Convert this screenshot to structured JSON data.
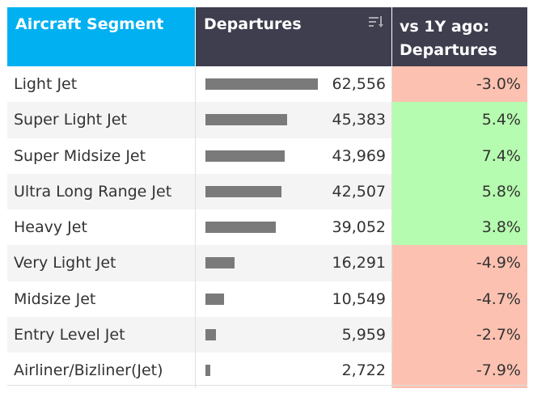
{
  "header": {
    "segment": "Aircraft Segment",
    "departures": "Departures",
    "vs_line1": "vs 1Y ago:",
    "vs_line2": "Departures"
  },
  "colors": {
    "positive": "#b6fcb0",
    "negative": "#fcc1b0",
    "bar": "#7a7a7a"
  },
  "bar_max": 62556,
  "rows": [
    {
      "segment": "Light Jet",
      "departures": "62,556",
      "value": 62556,
      "change": "-3.0%",
      "sign": "negative"
    },
    {
      "segment": "Super Light Jet",
      "departures": "45,383",
      "value": 45383,
      "change": "5.4%",
      "sign": "positive"
    },
    {
      "segment": "Super Midsize Jet",
      "departures": "43,969",
      "value": 43969,
      "change": "7.4%",
      "sign": "positive"
    },
    {
      "segment": "Ultra Long Range Jet",
      "departures": "42,507",
      "value": 42507,
      "change": "5.8%",
      "sign": "positive"
    },
    {
      "segment": "Heavy Jet",
      "departures": "39,052",
      "value": 39052,
      "change": "3.8%",
      "sign": "positive"
    },
    {
      "segment": "Very Light Jet",
      "departures": "16,291",
      "value": 16291,
      "change": "-4.9%",
      "sign": "negative"
    },
    {
      "segment": "Midsize Jet",
      "departures": "10,549",
      "value": 10549,
      "change": "-4.7%",
      "sign": "negative"
    },
    {
      "segment": "Entry Level Jet",
      "departures": "5,959",
      "value": 5959,
      "change": "-2.7%",
      "sign": "negative"
    },
    {
      "segment": "Airliner/Bizliner(Jet)",
      "departures": "2,722",
      "value": 2722,
      "change": "-7.9%",
      "sign": "negative"
    }
  ]
}
